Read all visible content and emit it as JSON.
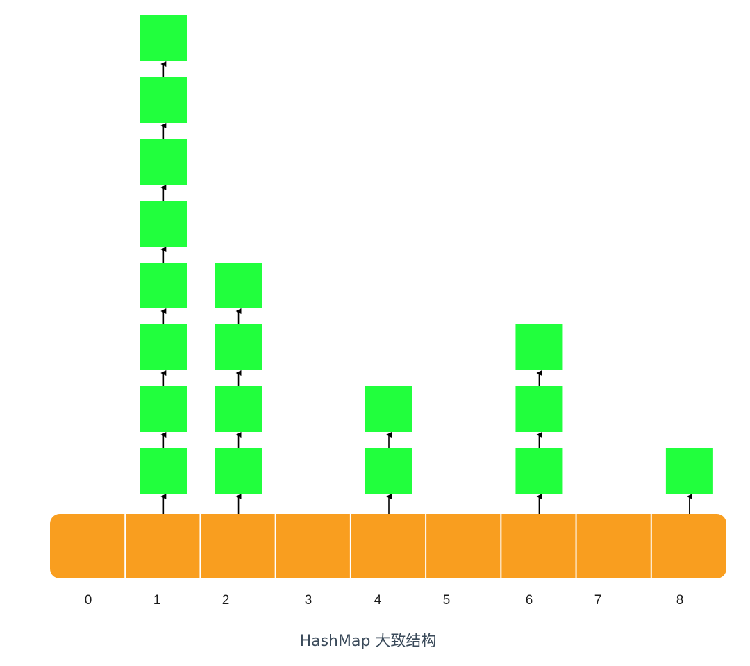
{
  "caption": "HashMap 大致结构",
  "colors": {
    "array": "#f99e1f",
    "node": "#21ff3d",
    "divider": "#ffffff",
    "arrow": "#000000",
    "label": "#1a1a1a",
    "caption": "#3a4a5a"
  },
  "buckets": [
    {
      "index": "0",
      "chain_length": 0
    },
    {
      "index": "1",
      "chain_length": 8
    },
    {
      "index": "2",
      "chain_length": 4
    },
    {
      "index": "3",
      "chain_length": 0
    },
    {
      "index": "4",
      "chain_length": 2
    },
    {
      "index": "5",
      "chain_length": 0
    },
    {
      "index": "6",
      "chain_length": 3
    },
    {
      "index": "7",
      "chain_length": 0
    },
    {
      "index": "8",
      "chain_length": 1
    }
  ]
}
